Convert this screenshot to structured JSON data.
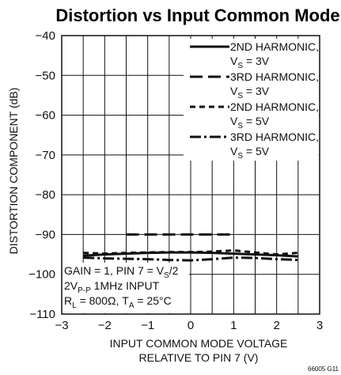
{
  "chart_data": {
    "type": "line",
    "title": "Distortion vs Input Common Mode",
    "xlabel_line1": "INPUT COMMON MODE VOLTAGE",
    "xlabel_line2": "RELATIVE TO PIN 7 (V)",
    "ylabel": "DISTORTION COMPONENT (dB)",
    "xlim": [
      -3,
      3
    ],
    "ylim": [
      -110,
      -40
    ],
    "x_ticks": [
      "−3",
      "−2",
      "−1",
      "0",
      "1",
      "2",
      "3"
    ],
    "y_ticks": [
      "−110",
      "−100",
      "−90",
      "−80",
      "−70",
      "−60",
      "−50",
      "−40"
    ],
    "grid": true,
    "legend_position": "top-right",
    "series": [
      {
        "name": "2ND HARMONIC",
        "cond_main": "V",
        "cond_sub": "S",
        "cond_value": " = 3V",
        "style": "solid",
        "x": [
          -2.5,
          -2.0,
          -1.5,
          -1.0,
          -0.5,
          0.0,
          0.5,
          1.0,
          1.5,
          2.0,
          2.5
        ],
        "y": [
          -95.3,
          -95.0,
          -94.8,
          -94.6,
          -94.5,
          -94.5,
          -94.6,
          -94.8,
          -95.0,
          -95.2,
          -95.5
        ]
      },
      {
        "name": "3RD HARMONIC",
        "cond_main": "V",
        "cond_sub": "S",
        "cond_value": " = 3V",
        "style": "longdash",
        "x": [
          -1.5,
          -1.0,
          -0.5,
          0.0,
          0.5,
          1.0
        ],
        "y": [
          -90.0,
          -90.0,
          -90.0,
          -90.0,
          -90.0,
          -90.0
        ]
      },
      {
        "name": "2ND HARMONIC",
        "cond_main": "V",
        "cond_sub": "S",
        "cond_value": " = 5V",
        "style": "shortdash",
        "x": [
          -2.5,
          -2.0,
          -1.5,
          -1.0,
          -0.5,
          0.0,
          0.5,
          1.0,
          1.5,
          2.0,
          2.5
        ],
        "y": [
          -94.6,
          -94.8,
          -94.6,
          -94.5,
          -94.4,
          -94.4,
          -94.3,
          -94.0,
          -94.5,
          -95.0,
          -94.6
        ]
      },
      {
        "name": "3RD HARMONIC",
        "cond_main": "V",
        "cond_sub": "S",
        "cond_value": " = 5V",
        "style": "dashdot",
        "x": [
          -2.5,
          -2.0,
          -1.5,
          -1.0,
          -0.5,
          0.0,
          0.5,
          1.0,
          1.5,
          2.0,
          2.5
        ],
        "y": [
          -95.8,
          -96.0,
          -96.1,
          -96.2,
          -96.4,
          -96.5,
          -96.2,
          -95.8,
          -95.9,
          -96.2,
          -96.4
        ]
      }
    ],
    "annotation": [
      [
        {
          "t": "GAIN = 1, PIN 7 = V"
        },
        {
          "t": "S",
          "sub": true
        },
        {
          "t": "/2"
        }
      ],
      [
        {
          "t": "2V"
        },
        {
          "t": "P-P",
          "sub": true
        },
        {
          "t": " 1MHz INPUT"
        }
      ],
      [
        {
          "t": "R"
        },
        {
          "t": "L",
          "sub": true
        },
        {
          "t": " = 800Ω, T"
        },
        {
          "t": "A",
          "sub": true
        },
        {
          "t": " = 25°C"
        }
      ]
    ],
    "figure_id": "66005 G11"
  },
  "colors": {
    "ink": "#111111",
    "grid": "#111111",
    "background": "#ffffff"
  }
}
